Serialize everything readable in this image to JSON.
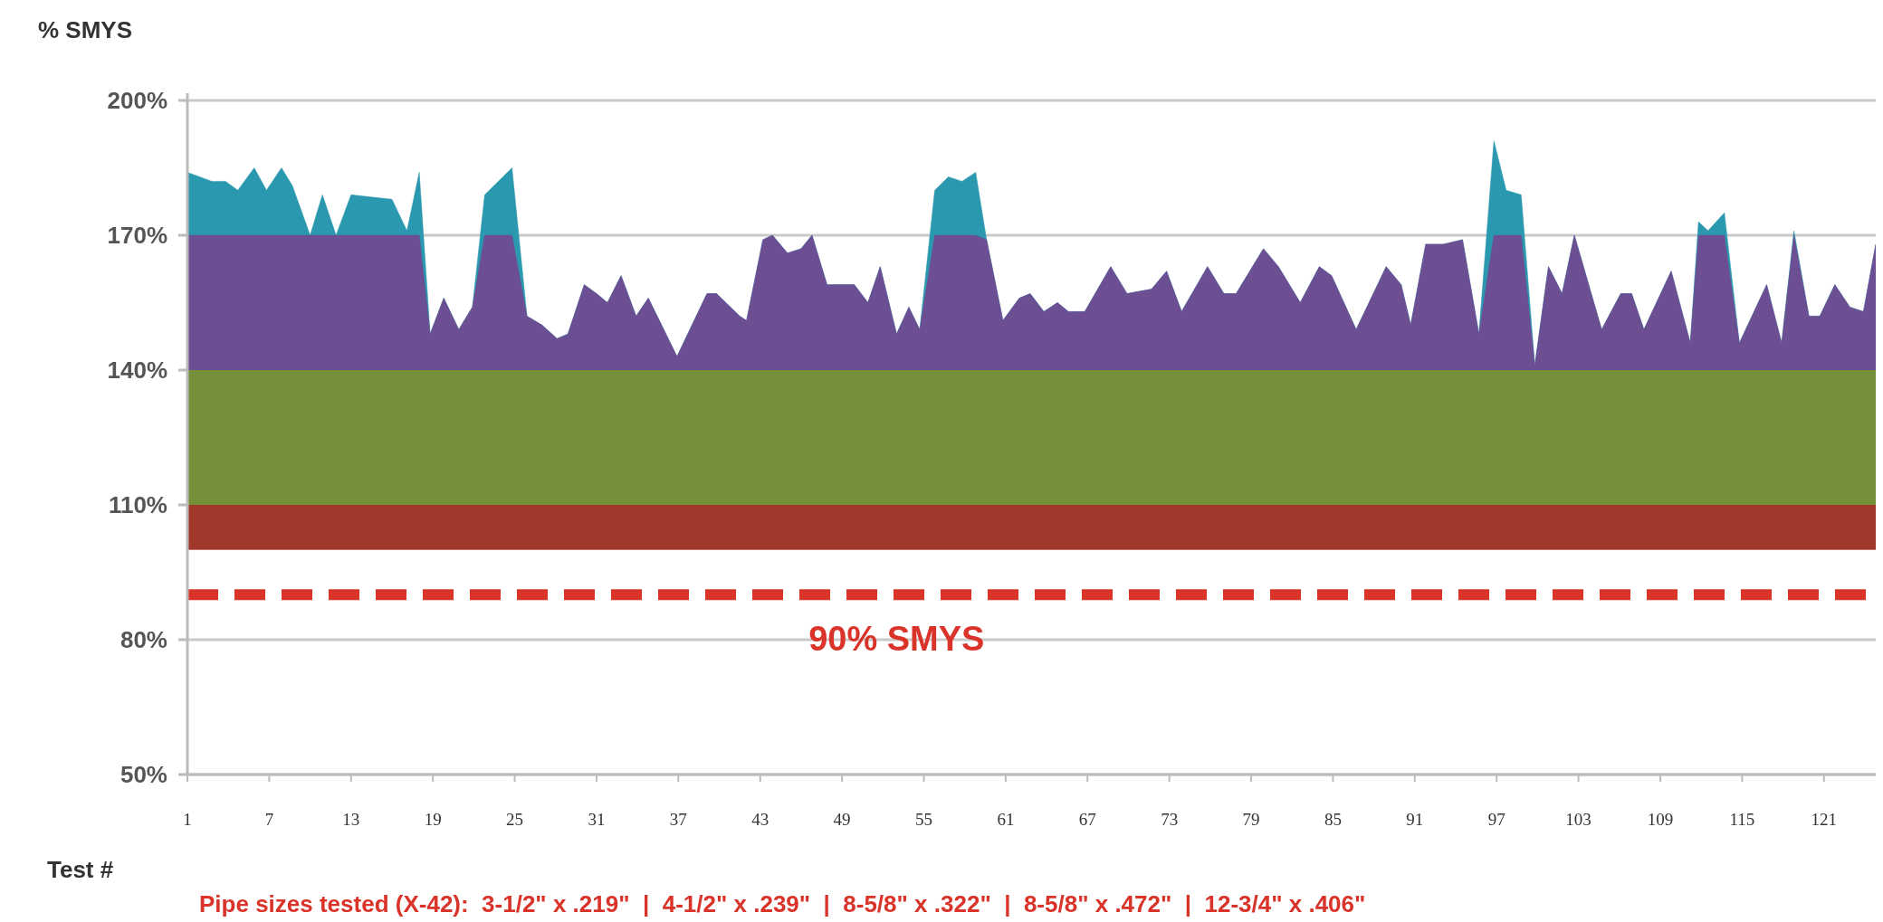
{
  "chart_data": {
    "type": "area",
    "ylabel": "% SMYS",
    "xlabel": "Test #",
    "xlim": [
      1,
      124.8
    ],
    "xticks": [
      1,
      7,
      13,
      19,
      25,
      31,
      37,
      43,
      49,
      55,
      61,
      67,
      73,
      79,
      85,
      91,
      97,
      103,
      109,
      115,
      121
    ],
    "ylim": [
      50,
      200
    ],
    "yticks": [
      {
        "value": 50,
        "label": "50%"
      },
      {
        "value": 80,
        "label": "80%"
      },
      {
        "value": 110,
        "label": "110%"
      },
      {
        "value": 140,
        "label": "140%"
      },
      {
        "value": 170,
        "label": "170%"
      },
      {
        "value": 200,
        "label": "200%"
      }
    ],
    "grid": "y",
    "x": [
      1,
      1.9,
      2.8,
      3.8,
      4.7,
      5.9,
      6.8,
      7.9,
      8.7,
      10,
      10.9,
      11.9,
      13,
      16,
      17.1,
      18,
      18.8,
      19.8,
      20.9,
      21.9,
      22.8,
      24.8,
      25.9,
      27,
      28.1,
      28.9,
      30.1,
      31,
      31.8,
      32.8,
      33.9,
      34.8,
      36.9,
      39.1,
      39.8,
      41.5,
      42,
      43.2,
      43.9,
      45,
      46,
      46.8,
      47.9,
      49.9,
      50.9,
      51.8,
      53,
      53.9,
      54.7,
      55.8,
      56.8,
      57.8,
      58.8,
      59.6,
      60.8,
      62,
      62.8,
      63.8,
      64.8,
      65.6,
      66.8,
      68.7,
      69.9,
      71.7,
      72.8,
      73.9,
      75.8,
      77,
      77.9,
      79.9,
      81,
      82.6,
      84,
      84.9,
      86.7,
      88.9,
      90,
      90.7,
      91.8,
      93.1,
      94.5,
      95.7,
      96.8,
      97.7,
      98.8,
      99.8,
      100.8,
      101.8,
      102.7,
      104.7,
      106.1,
      106.9,
      107.8,
      109.8,
      111.2,
      111.8,
      112.5,
      113.7,
      114.8,
      116.8,
      117.9,
      118.8,
      119.9,
      120.7,
      121.8,
      122.9,
      123.9,
      124.8
    ],
    "series": [
      {
        "color": "#2a98ae",
        "values": [
          184,
          183,
          182,
          182,
          180,
          185,
          180,
          185,
          181,
          170,
          179,
          170,
          179,
          178,
          171,
          184,
          148,
          156,
          149,
          154,
          179,
          185,
          152,
          150,
          147,
          148,
          159,
          157,
          155,
          161,
          152,
          156,
          143,
          157,
          157,
          152,
          151,
          169,
          170,
          166,
          167,
          170,
          159,
          159,
          155,
          163,
          148,
          154,
          149,
          180,
          183,
          182,
          184,
          169,
          151,
          156,
          157,
          153,
          155,
          153,
          153,
          163,
          157,
          158,
          162,
          153,
          163,
          157,
          157,
          167,
          163,
          155,
          163,
          161,
          149,
          163,
          159,
          150,
          168,
          168,
          169,
          148,
          191,
          180,
          179,
          141,
          163,
          157,
          170,
          149,
          157,
          157,
          149,
          162,
          146,
          173,
          171,
          175,
          146,
          159,
          146,
          171,
          152,
          152,
          159,
          154,
          153,
          168
        ]
      },
      {
        "color": "#6c4f92",
        "values": [
          170,
          170,
          170,
          170,
          170,
          170,
          170,
          170,
          170,
          170,
          170,
          170,
          170,
          170,
          170,
          170,
          148,
          156,
          149,
          154,
          170,
          170,
          152,
          150,
          147,
          148,
          159,
          157,
          155,
          161,
          152,
          156,
          143,
          157,
          157,
          152,
          151,
          169,
          170,
          166,
          167,
          170,
          159,
          159,
          155,
          163,
          148,
          154,
          149,
          170,
          170,
          170,
          170,
          169,
          151,
          156,
          157,
          153,
          155,
          153,
          153,
          163,
          157,
          158,
          162,
          153,
          163,
          157,
          157,
          167,
          163,
          155,
          163,
          161,
          149,
          163,
          159,
          150,
          168,
          168,
          169,
          148,
          170,
          170,
          170,
          141,
          163,
          157,
          170,
          149,
          157,
          157,
          149,
          162,
          146,
          170,
          170,
          170,
          146,
          159,
          146,
          170,
          152,
          152,
          159,
          154,
          153,
          168
        ]
      }
    ],
    "bands": [
      {
        "axis": "y",
        "from": 100,
        "to": 110,
        "color": "#a2372c"
      },
      {
        "axis": "y",
        "from": 110,
        "to": 140,
        "color": "#76903a"
      }
    ],
    "ref_lines": [
      {
        "axis": "y",
        "value": 90,
        "label": "90% SMYS",
        "color": "#d9332a",
        "line_style": "dashed"
      }
    ],
    "annotations": [
      "Pipe sizes tested (X-42):  3-1/2\" x .219\"  |  4-1/2\" x .239\"  |  8-5/8\" x .322\"  |  8-5/8\" x .472\"  |  12-3/4\" x .406\""
    ]
  }
}
